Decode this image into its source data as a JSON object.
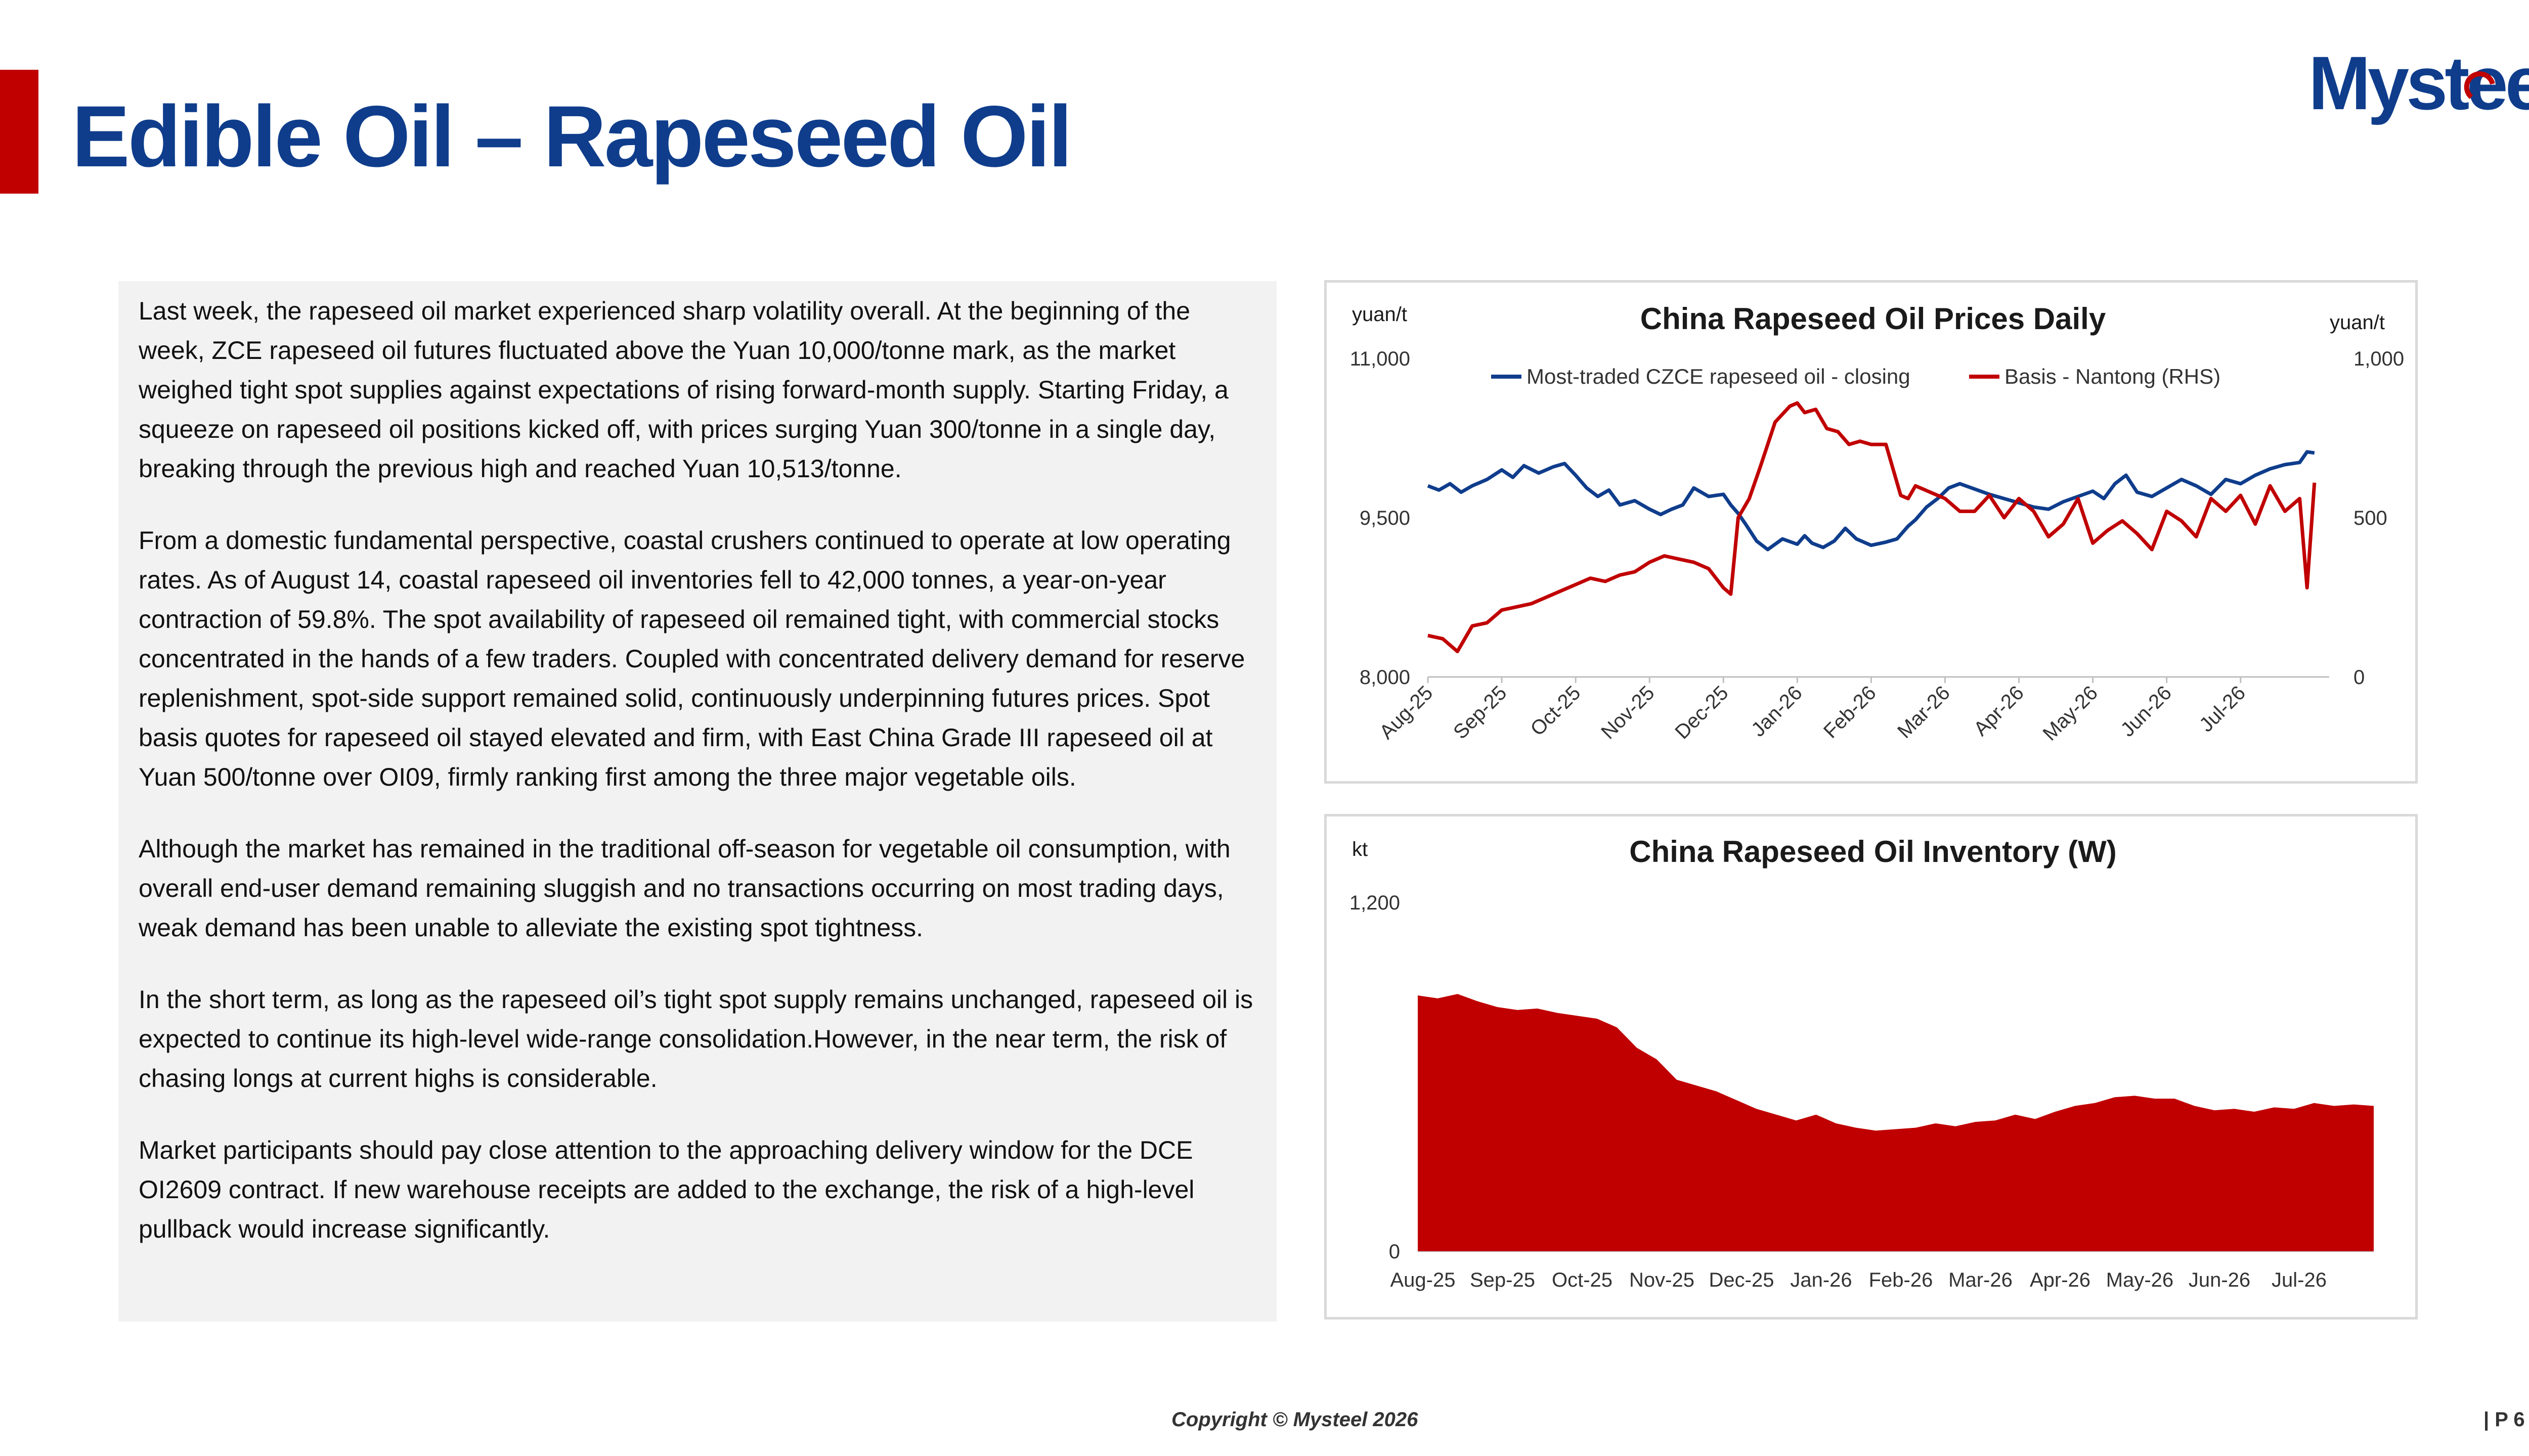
{
  "page": {
    "title": "Edible Oil – Rapeseed Oil",
    "logo_text": "Mysteel",
    "copyright": "Copyright © Mysteel 2026",
    "page_number": "| P 6"
  },
  "article": {
    "paragraphs": [
      "Last week, the rapeseed oil market experienced sharp volatility overall. At the beginning of the week, ZCE rapeseed oil futures fluctuated above the Yuan 10,000/tonne mark, as the market weighed tight spot supplies against expectations of rising forward-month supply. Starting Friday, a squeeze on rapeseed oil positions kicked off, with prices surging Yuan 300/tonne in a single day, breaking through the previous high and reached Yuan 10,513/tonne.",
      "From a domestic fundamental perspective, coastal crushers continued to operate at low operating rates. As of August 14, coastal rapeseed oil inventories fell to 42,000 tonnes, a year-on-year contraction of 59.8%. The spot availability of rapeseed oil remained tight, with commercial stocks concentrated in the hands of a few traders. Coupled with concentrated delivery demand for reserve replenishment, spot-side support remained solid, continuously underpinning futures prices. Spot basis quotes for rapeseed oil stayed elevated and firm, with East China Grade III rapeseed oil at Yuan 500/tonne over OI09, firmly ranking first among the three major vegetable oils.",
      "Although the market has remained in the traditional off-season for vegetable oil consumption, with overall end-user demand remaining sluggish and no transactions occurring on most trading days, weak demand has been unable to alleviate the existing spot tightness.",
      "In the short term, as long as the rapeseed oil’s tight spot supply remains unchanged, rapeseed oil is expected to continue its high-level wide-range consolidation.However, in the near term, the risk of chasing longs at current highs is considerable.",
      "Market participants should pay close attention to the approaching delivery window for the DCE OI2609 contract. If new warehouse receipts are added to the exchange, the risk of a high-level pullback would increase significantly."
    ]
  },
  "chart_data": [
    {
      "type": "line",
      "title": "China Rapeseed Oil Prices Daily",
      "ylabel": "yuan/t",
      "ylabel_right": "yuan/t",
      "ylim": [
        8000,
        11000
      ],
      "yticks": [
        8000,
        9500,
        11000
      ],
      "ytick_labels": [
        "8,000",
        "9,500",
        "11,000"
      ],
      "ylim_right": [
        0,
        1000
      ],
      "yticks_right": [
        0,
        500,
        1000
      ],
      "ytick_labels_right": [
        "0",
        "500",
        "1,000"
      ],
      "x_tick_labels": [
        "Aug-25",
        "Sep-25",
        "Oct-25",
        "Nov-25",
        "Dec-25",
        "Jan-26",
        "Feb-26",
        "Mar-26",
        "Apr-26",
        "May-26",
        "Jun-26",
        "Jul-26"
      ],
      "x_range": [
        0,
        12.2
      ],
      "legend_position": "top",
      "series": [
        {
          "name": "Most-traded CZCE rapeseed oil - closing",
          "axis": "left",
          "color": "#0f3d8c",
          "x": [
            0,
            0.15,
            0.3,
            0.45,
            0.6,
            0.8,
            1.0,
            1.15,
            1.3,
            1.5,
            1.7,
            1.85,
            2.0,
            2.15,
            2.3,
            2.45,
            2.6,
            2.8,
            3.0,
            3.15,
            3.3,
            3.45,
            3.6,
            3.8,
            4.0,
            4.1,
            4.2,
            4.3,
            4.45,
            4.6,
            4.8,
            5.0,
            5.1,
            5.2,
            5.35,
            5.5,
            5.65,
            5.8,
            6.0,
            6.2,
            6.35,
            6.5,
            6.6,
            6.75,
            6.9,
            7.05,
            7.2,
            7.4,
            7.6,
            7.8,
            8.0,
            8.2,
            8.4,
            8.6,
            8.8,
            9.0,
            9.15,
            9.3,
            9.45,
            9.6,
            9.8,
            10.0,
            10.2,
            10.4,
            10.6,
            10.8,
            11.0,
            11.2,
            11.4,
            11.6,
            11.8,
            11.9,
            12.0
          ],
          "values": [
            9800,
            9760,
            9820,
            9740,
            9800,
            9860,
            9950,
            9880,
            9990,
            9920,
            9980,
            10010,
            9900,
            9780,
            9700,
            9760,
            9620,
            9660,
            9580,
            9530,
            9580,
            9620,
            9780,
            9700,
            9720,
            9620,
            9540,
            9440,
            9280,
            9200,
            9300,
            9250,
            9330,
            9260,
            9220,
            9280,
            9400,
            9300,
            9240,
            9270,
            9300,
            9420,
            9480,
            9600,
            9680,
            9780,
            9820,
            9770,
            9720,
            9680,
            9640,
            9600,
            9580,
            9650,
            9700,
            9750,
            9680,
            9820,
            9900,
            9740,
            9700,
            9780,
            9860,
            9800,
            9720,
            9860,
            9820,
            9900,
            9960,
            10000,
            10020,
            10120,
            10110
          ]
        },
        {
          "name": "Basis - Nantong (RHS)",
          "axis": "right",
          "color": "#c00000",
          "x": [
            0,
            0.2,
            0.4,
            0.6,
            0.8,
            1.0,
            1.2,
            1.4,
            1.6,
            1.8,
            2.0,
            2.2,
            2.4,
            2.6,
            2.8,
            3.0,
            3.2,
            3.4,
            3.6,
            3.8,
            4.0,
            4.1,
            4.2,
            4.35,
            4.5,
            4.7,
            4.9,
            5.0,
            5.1,
            5.25,
            5.4,
            5.55,
            5.7,
            5.85,
            6.0,
            6.2,
            6.4,
            6.5,
            6.6,
            6.8,
            7.0,
            7.2,
            7.4,
            7.6,
            7.8,
            8.0,
            8.2,
            8.4,
            8.6,
            8.8,
            9.0,
            9.2,
            9.4,
            9.6,
            9.8,
            10.0,
            10.2,
            10.4,
            10.6,
            10.8,
            11.0,
            11.2,
            11.4,
            11.6,
            11.8,
            11.9,
            12.0
          ],
          "values": [
            130,
            120,
            80,
            160,
            170,
            210,
            220,
            230,
            250,
            270,
            290,
            310,
            300,
            320,
            330,
            360,
            380,
            370,
            360,
            340,
            280,
            260,
            500,
            560,
            660,
            800,
            850,
            860,
            830,
            840,
            780,
            770,
            730,
            740,
            730,
            730,
            570,
            560,
            600,
            580,
            560,
            520,
            520,
            570,
            500,
            560,
            520,
            440,
            480,
            560,
            420,
            460,
            490,
            450,
            400,
            520,
            490,
            440,
            560,
            520,
            570,
            480,
            600,
            520,
            560,
            280,
            610
          ]
        }
      ]
    },
    {
      "type": "area",
      "title": "China Rapeseed Oil Inventory (W)",
      "ylabel": "kt",
      "ylim": [
        0,
        1200
      ],
      "yticks": [
        0,
        1200
      ],
      "ytick_labels": [
        "0",
        "1,200"
      ],
      "x_tick_labels": [
        "Aug-25",
        "Sep-25",
        "Oct-25",
        "Nov-25",
        "Dec-25",
        "Jan-26",
        "Feb-26",
        "Mar-26",
        "Apr-26",
        "May-26",
        "Jun-26",
        "Jul-26"
      ],
      "x_range": [
        0,
        12
      ],
      "series": [
        {
          "name": "",
          "color": "#c00000",
          "x": [
            0,
            0.25,
            0.5,
            0.75,
            1.0,
            1.25,
            1.5,
            1.75,
            2.0,
            2.25,
            2.5,
            2.75,
            3.0,
            3.25,
            3.5,
            3.75,
            4.0,
            4.25,
            4.5,
            4.75,
            5.0,
            5.25,
            5.5,
            5.75,
            6.0,
            6.25,
            6.5,
            6.75,
            7.0,
            7.25,
            7.5,
            7.75,
            8.0,
            8.25,
            8.5,
            8.75,
            9.0,
            9.25,
            9.5,
            9.75,
            10.0,
            10.25,
            10.5,
            10.75,
            11.0,
            11.25,
            11.5,
            11.75,
            12.0
          ],
          "values": [
            880,
            870,
            885,
            860,
            840,
            830,
            835,
            820,
            810,
            800,
            770,
            700,
            660,
            590,
            570,
            550,
            520,
            490,
            470,
            450,
            470,
            440,
            425,
            415,
            420,
            425,
            440,
            430,
            445,
            450,
            470,
            455,
            480,
            500,
            510,
            530,
            535,
            525,
            525,
            500,
            485,
            490,
            480,
            495,
            490,
            510,
            500,
            505,
            500
          ]
        }
      ]
    }
  ]
}
